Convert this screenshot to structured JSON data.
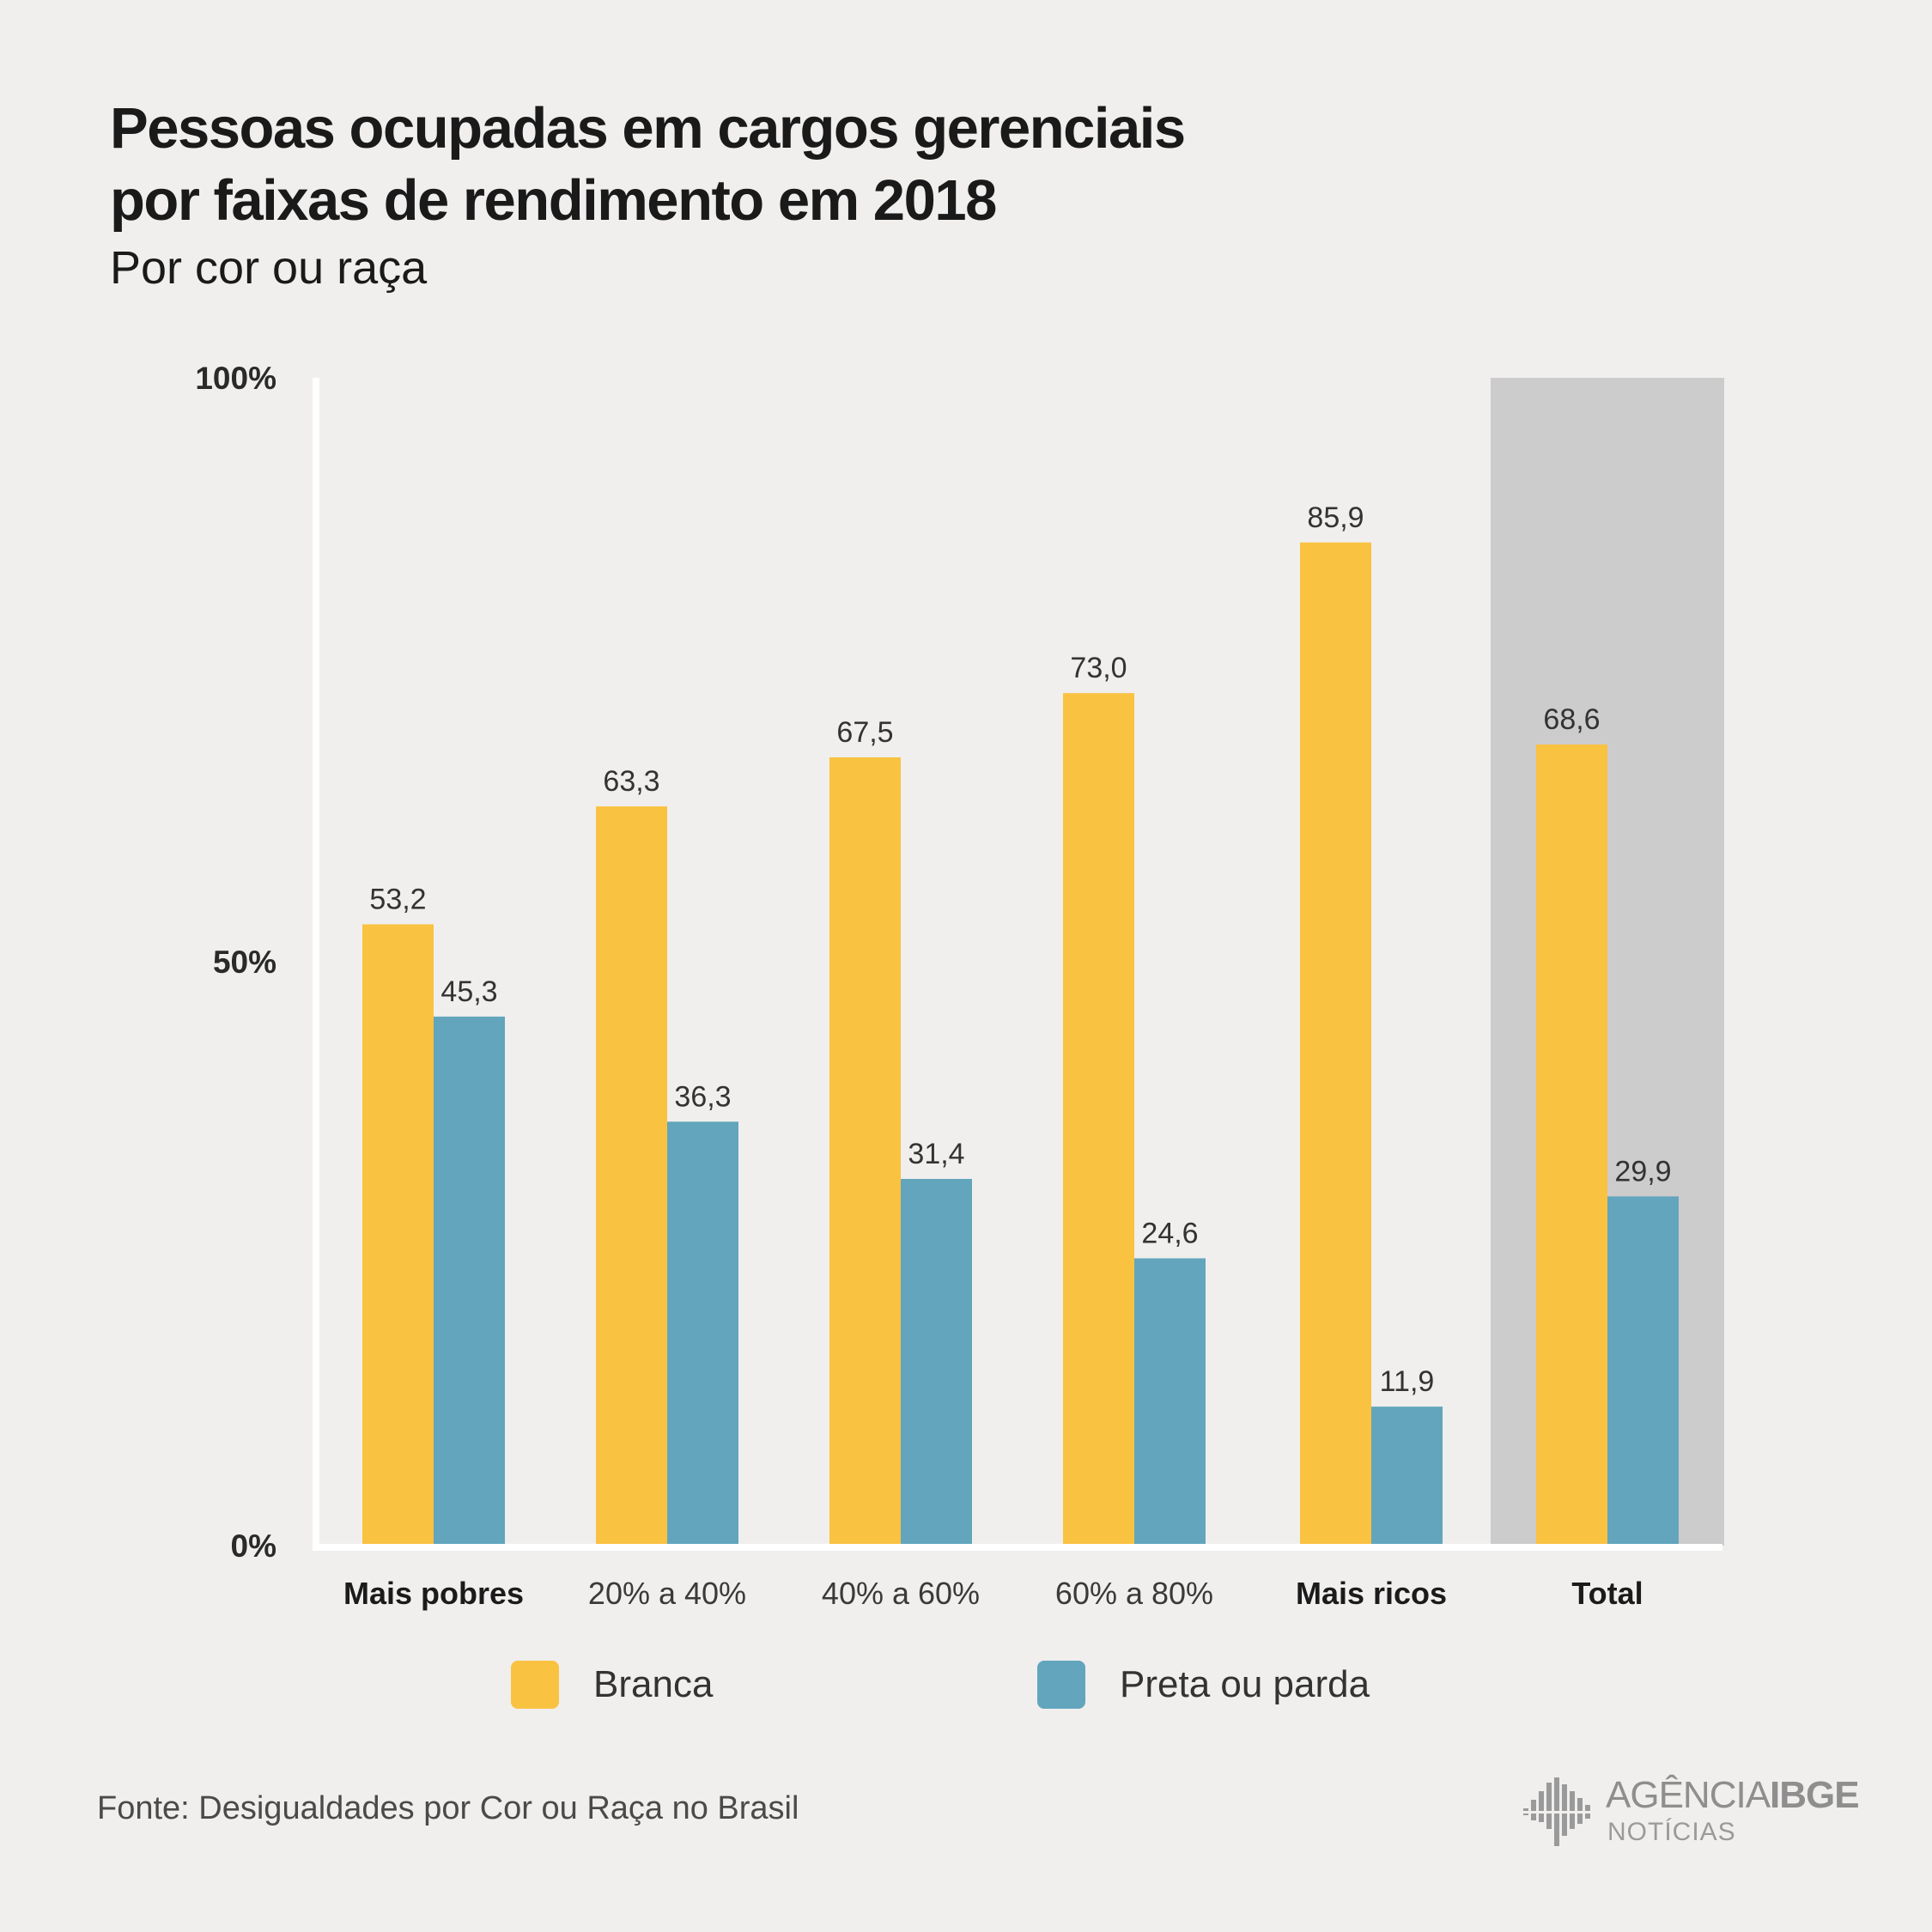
{
  "title_line1": "Pessoas ocupadas em cargos gerenciais",
  "title_line2": "por faixas de rendimento em 2018",
  "subtitle": "Por cor ou raça",
  "source": "Fonte: Desigualdades por Cor ou Raça no Brasil",
  "logo": {
    "line1_a": "AGÊNCIA",
    "line1_b": "IBGE",
    "line2": "NOTÍCIAS"
  },
  "colors": {
    "branca": "#f9c241",
    "preta_parda": "#62a5bd",
    "highlight": "#cccccc",
    "axis": "#ffffff"
  },
  "chart_data": {
    "type": "bar",
    "categories": [
      "Mais pobres",
      "20% a 40%",
      "40% a 60%",
      "60% a 80%",
      "Mais ricos",
      "Total"
    ],
    "bold_categories": [
      "Mais pobres",
      "Mais ricos",
      "Total"
    ],
    "highlighted_category": "Total",
    "series": [
      {
        "name": "Branca",
        "values": [
          53.2,
          63.3,
          67.5,
          73.0,
          85.9,
          68.6
        ],
        "labels": [
          "53,2",
          "63,3",
          "67,5",
          "73,0",
          "85,9",
          "68,6"
        ]
      },
      {
        "name": "Preta ou parda",
        "values": [
          45.3,
          36.3,
          31.4,
          24.6,
          11.9,
          29.9
        ],
        "labels": [
          "45,3",
          "36,3",
          "31,4",
          "24,6",
          "11,9",
          "29,9"
        ]
      }
    ],
    "y_ticks": [
      "0%",
      "50%",
      "100%"
    ],
    "ylim": [
      0,
      100
    ],
    "grid": false,
    "legend_position": "bottom"
  }
}
